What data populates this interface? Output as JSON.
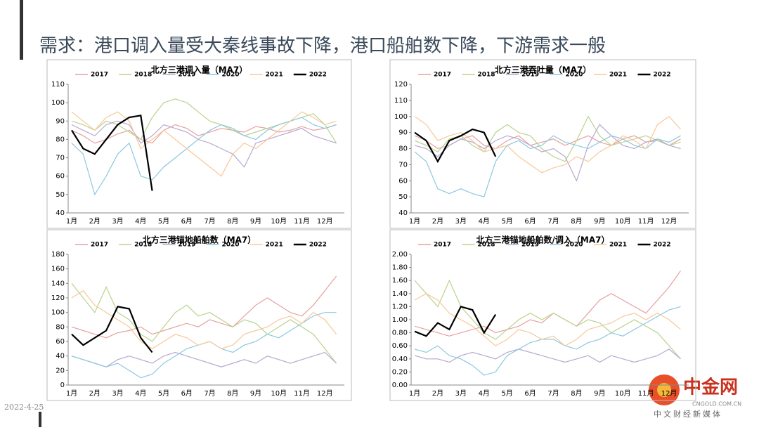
{
  "page": {
    "title": "需求：港口调入量受大秦线事故下降，港口船舶数下降，下游需求一般",
    "date": "2022-4-25",
    "logo": "中金网",
    "logo_url": "CNGOLD.COM.CN",
    "logo_sub": "中文财经新媒体"
  },
  "chart_data": [
    {
      "type": "line",
      "title": "北方三港调入量（MA7）",
      "categories": [
        "1月",
        null,
        "2月",
        null,
        "3月",
        null,
        "4月",
        null,
        "5月",
        null,
        "6月",
        null,
        "7月",
        null,
        "8月",
        null,
        "9月",
        null,
        "10月",
        null,
        "11月",
        null,
        "12月",
        null
      ],
      "ylim": [
        40,
        110
      ],
      "yticks": [
        40,
        50,
        60,
        70,
        80,
        90,
        100,
        110
      ],
      "series": [
        {
          "name": "2017",
          "color": "#e8a0a0",
          "values": [
            85,
            82,
            78,
            80,
            83,
            85,
            80,
            78,
            85,
            88,
            86,
            82,
            84,
            86,
            85,
            84,
            87,
            86,
            84,
            85,
            87,
            85,
            86,
            88
          ]
        },
        {
          "name": "2018",
          "color": "#b8d48c",
          "values": [
            90,
            88,
            85,
            90,
            88,
            84,
            80,
            92,
            100,
            102,
            100,
            95,
            90,
            88,
            85,
            82,
            84,
            86,
            88,
            90,
            92,
            94,
            88,
            78
          ]
        },
        {
          "name": "2019",
          "color": "#b8a8d0",
          "values": [
            88,
            85,
            82,
            88,
            90,
            88,
            78,
            82,
            88,
            86,
            84,
            80,
            78,
            75,
            72,
            65,
            78,
            80,
            82,
            84,
            86,
            82,
            80,
            78
          ]
        },
        {
          "name": "2020",
          "color": "#8cc8e0",
          "values": [
            78,
            72,
            50,
            60,
            72,
            78,
            60,
            58,
            65,
            70,
            75,
            80,
            85,
            88,
            86,
            82,
            80,
            85,
            88,
            90,
            92,
            88,
            86,
            88
          ]
        },
        {
          "name": "2021",
          "color": "#f8c898",
          "values": [
            95,
            90,
            85,
            92,
            95,
            90,
            75,
            80,
            85,
            80,
            75,
            70,
            65,
            60,
            72,
            78,
            75,
            80,
            85,
            90,
            95,
            92,
            88,
            90
          ]
        },
        {
          "name": "2022",
          "color": "#000000",
          "values": [
            85,
            75,
            72,
            80,
            88,
            92,
            93,
            52,
            null,
            null,
            null,
            null,
            null,
            null,
            null,
            null,
            null,
            null,
            null,
            null,
            null,
            null,
            null,
            null
          ]
        }
      ]
    },
    {
      "type": "line",
      "title": "北方三港吞吐量（MA7）",
      "categories": [
        "1月",
        null,
        "2月",
        null,
        "3月",
        null,
        "4月",
        null,
        "5月",
        null,
        "6月",
        null,
        "7月",
        null,
        "8月",
        null,
        "9月",
        null,
        "10月",
        null,
        "11月",
        null,
        "12月",
        null
      ],
      "ylim": [
        40,
        120
      ],
      "yticks": [
        40,
        50,
        60,
        70,
        80,
        90,
        100,
        110,
        120
      ],
      "series": [
        {
          "name": "2017",
          "color": "#e8a0a0",
          "values": [
            88,
            85,
            80,
            82,
            86,
            88,
            82,
            80,
            85,
            88,
            82,
            84,
            86,
            82,
            85,
            88,
            84,
            82,
            86,
            88,
            84,
            85,
            82,
            86
          ]
        },
        {
          "name": "2018",
          "color": "#b8d48c",
          "values": [
            85,
            82,
            78,
            86,
            88,
            82,
            78,
            90,
            95,
            90,
            88,
            80,
            75,
            72,
            85,
            100,
            88,
            82,
            84,
            86,
            88,
            85,
            82,
            84
          ]
        },
        {
          "name": "2019",
          "color": "#b8a8d0",
          "values": [
            82,
            80,
            75,
            82,
            86,
            84,
            80,
            85,
            88,
            86,
            82,
            78,
            80,
            75,
            60,
            82,
            95,
            88,
            82,
            80,
            84,
            86,
            82,
            80
          ]
        },
        {
          "name": "2020",
          "color": "#8cc8e0",
          "values": [
            78,
            72,
            55,
            52,
            55,
            52,
            50,
            72,
            82,
            85,
            80,
            82,
            88,
            84,
            82,
            80,
            84,
            88,
            86,
            82,
            80,
            86,
            84,
            88
          ]
        },
        {
          "name": "2021",
          "color": "#f8c898",
          "values": [
            100,
            95,
            85,
            88,
            90,
            85,
            78,
            80,
            82,
            75,
            70,
            65,
            68,
            70,
            75,
            72,
            78,
            82,
            88,
            85,
            80,
            95,
            100,
            92
          ]
        },
        {
          "name": "2022",
          "color": "#000000",
          "values": [
            90,
            85,
            72,
            85,
            88,
            92,
            90,
            75,
            null,
            null,
            null,
            null,
            null,
            null,
            null,
            null,
            null,
            null,
            null,
            null,
            null,
            null,
            null,
            null
          ]
        }
      ]
    },
    {
      "type": "line",
      "title": "北方三港锚地船舶数（MA7）",
      "categories": [
        "1月",
        null,
        "2月",
        null,
        "3月",
        null,
        "4月",
        null,
        "5月",
        null,
        "6月",
        null,
        "7月",
        null,
        "8月",
        null,
        "9月",
        null,
        "10月",
        null,
        "11月",
        null,
        "12月",
        null
      ],
      "ylim": [
        0,
        180
      ],
      "yticks": [
        0,
        20,
        40,
        60,
        80,
        100,
        120,
        140,
        160,
        180
      ],
      "series": [
        {
          "name": "2017",
          "color": "#e8a0a0",
          "values": [
            80,
            75,
            70,
            65,
            72,
            75,
            80,
            70,
            75,
            80,
            85,
            80,
            90,
            85,
            80,
            95,
            110,
            120,
            110,
            100,
            95,
            110,
            130,
            150
          ]
        },
        {
          "name": "2018",
          "color": "#b8d48c",
          "values": [
            140,
            120,
            100,
            135,
            100,
            90,
            70,
            60,
            80,
            100,
            110,
            95,
            100,
            90,
            80,
            90,
            85,
            70,
            80,
            90,
            80,
            70,
            50,
            30
          ]
        },
        {
          "name": "2019",
          "color": "#b8a8d0",
          "values": [
            40,
            35,
            30,
            25,
            35,
            40,
            35,
            30,
            40,
            45,
            40,
            35,
            30,
            25,
            30,
            35,
            30,
            40,
            35,
            30,
            35,
            40,
            45,
            30
          ]
        },
        {
          "name": "2020",
          "color": "#8cc8e0",
          "values": [
            40,
            35,
            30,
            25,
            30,
            20,
            10,
            15,
            30,
            40,
            50,
            55,
            60,
            50,
            45,
            55,
            60,
            70,
            65,
            75,
            85,
            95,
            100,
            100
          ]
        },
        {
          "name": "2021",
          "color": "#f8c898",
          "values": [
            120,
            130,
            110,
            100,
            90,
            80,
            60,
            50,
            60,
            70,
            65,
            55,
            60,
            50,
            55,
            70,
            75,
            80,
            90,
            95,
            85,
            100,
            90,
            70
          ]
        },
        {
          "name": "2022",
          "color": "#000000",
          "values": [
            70,
            55,
            65,
            75,
            108,
            105,
            65,
            45,
            null,
            null,
            null,
            null,
            null,
            null,
            null,
            null,
            null,
            null,
            null,
            null,
            null,
            null,
            null,
            null
          ]
        }
      ]
    },
    {
      "type": "line",
      "title": "北方三港锚地船舶数/调入（MA7）",
      "categories": [
        "1月",
        null,
        "2月",
        null,
        "3月",
        null,
        "4月",
        null,
        "5月",
        null,
        "6月",
        null,
        "7月",
        null,
        "8月",
        null,
        "9月",
        null,
        "10月",
        null,
        "11月",
        null,
        "12月",
        null
      ],
      "ylim": [
        0,
        2
      ],
      "yticks": [
        {
          "value": 0,
          "label": "0.00"
        },
        {
          "value": 0.2,
          "label": "0.20"
        },
        {
          "value": 0.4,
          "label": "0.40"
        },
        {
          "value": 0.6,
          "label": "0.60"
        },
        {
          "value": 0.8,
          "label": "0.80"
        },
        {
          "value": 1,
          "label": "1.00"
        },
        {
          "value": 1.2,
          "label": "1.20"
        },
        {
          "value": 1.4,
          "label": "1.40"
        },
        {
          "value": 1.6,
          "label": "1.60"
        },
        {
          "value": 1.8,
          "label": "1.80"
        },
        {
          "value": 2,
          "label": "2.00"
        }
      ],
      "series": [
        {
          "name": "2017",
          "color": "#e8a0a0",
          "values": [
            0.9,
            0.85,
            0.8,
            0.75,
            0.8,
            0.85,
            0.9,
            0.8,
            0.85,
            0.9,
            1.0,
            0.95,
            1.1,
            1.0,
            0.9,
            1.1,
            1.3,
            1.4,
            1.3,
            1.2,
            1.1,
            1.3,
            1.5,
            1.75
          ]
        },
        {
          "name": "2018",
          "color": "#b8d48c",
          "values": [
            1.6,
            1.4,
            1.2,
            1.6,
            1.2,
            1.0,
            0.8,
            0.7,
            0.85,
            1.0,
            1.1,
            1.0,
            1.1,
            1.0,
            0.9,
            1.0,
            0.95,
            0.8,
            0.9,
            1.0,
            0.9,
            0.8,
            0.6,
            0.4
          ]
        },
        {
          "name": "2019",
          "color": "#b8a8d0",
          "values": [
            0.45,
            0.4,
            0.4,
            0.35,
            0.45,
            0.5,
            0.45,
            0.4,
            0.5,
            0.55,
            0.5,
            0.45,
            0.4,
            0.35,
            0.4,
            0.45,
            0.35,
            0.45,
            0.4,
            0.35,
            0.4,
            0.45,
            0.55,
            0.4
          ]
        },
        {
          "name": "2020",
          "color": "#8cc8e0",
          "values": [
            0.55,
            0.5,
            0.6,
            0.45,
            0.4,
            0.3,
            0.15,
            0.2,
            0.45,
            0.55,
            0.65,
            0.7,
            0.7,
            0.6,
            0.55,
            0.65,
            0.7,
            0.8,
            0.75,
            0.85,
            0.95,
            1.05,
            1.15,
            1.2
          ]
        },
        {
          "name": "2021",
          "color": "#f8c898",
          "values": [
            1.3,
            1.4,
            1.3,
            1.1,
            1.0,
            0.9,
            0.75,
            0.6,
            0.7,
            0.85,
            0.8,
            0.7,
            0.75,
            0.6,
            0.7,
            0.85,
            0.9,
            0.95,
            1.05,
            1.1,
            1.0,
            1.1,
            1.0,
            0.85
          ]
        },
        {
          "name": "2022",
          "color": "#000000",
          "values": [
            0.82,
            0.75,
            0.95,
            0.85,
            1.2,
            1.15,
            0.8,
            1.08,
            null,
            null,
            null,
            null,
            null,
            null,
            null,
            null,
            null,
            null,
            null,
            null,
            null,
            null,
            null,
            null
          ]
        }
      ]
    }
  ]
}
